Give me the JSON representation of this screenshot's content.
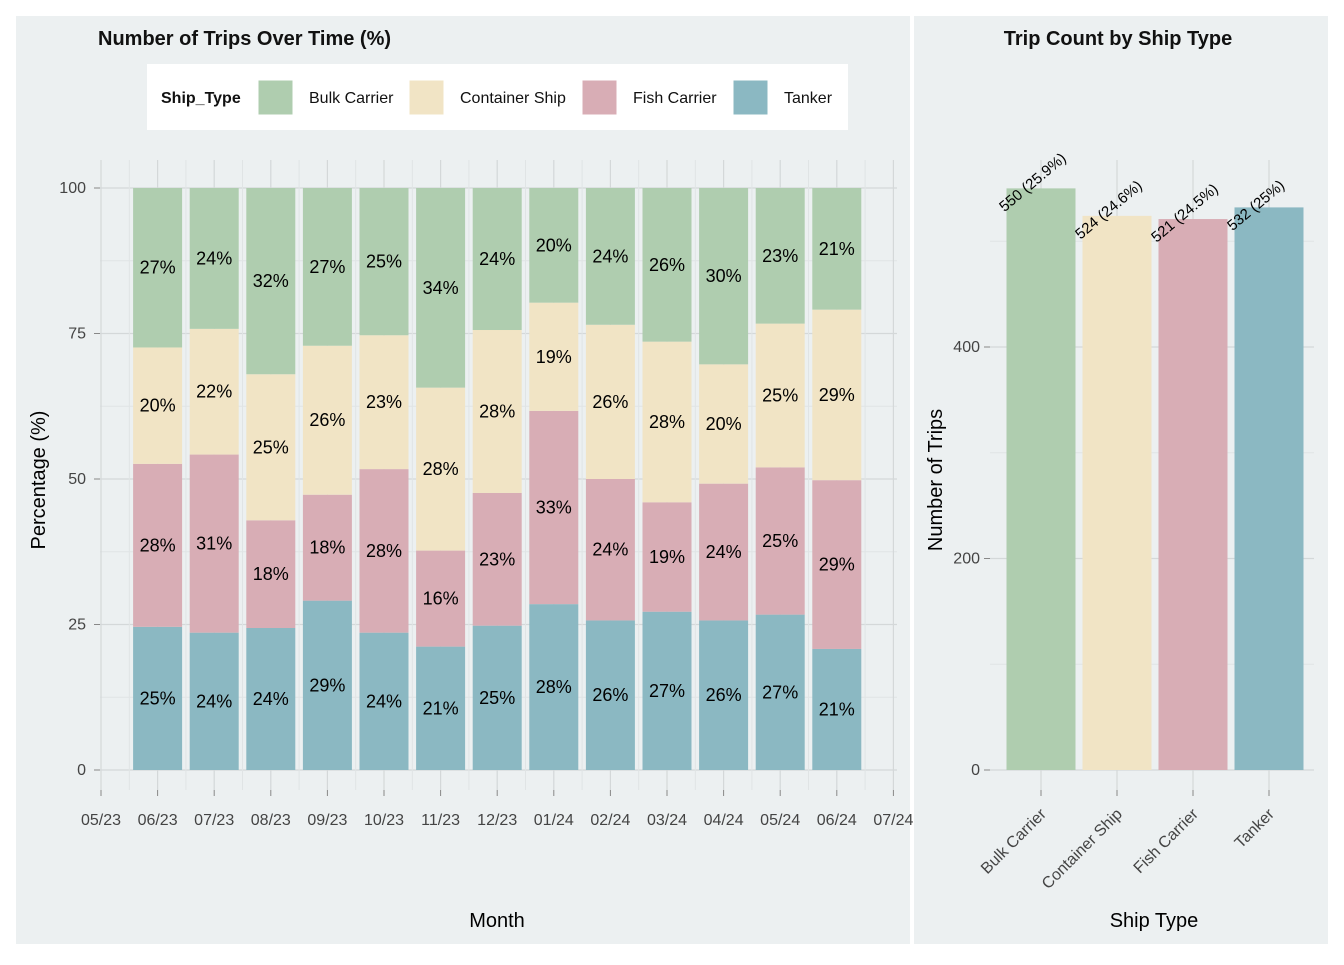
{
  "chart_data": [
    {
      "type": "bar",
      "stacked": true,
      "title": "Number of Trips Over Time (%)",
      "xlabel": "Month",
      "ylabel": "Percentage (%)",
      "ylim": [
        0,
        100
      ],
      "yticks": [
        "0",
        "25",
        "50",
        "75",
        "100"
      ],
      "xticks": [
        "05/23",
        "06/23",
        "07/23",
        "08/23",
        "09/23",
        "10/23",
        "11/23",
        "12/23",
        "01/24",
        "02/24",
        "03/24",
        "04/24",
        "05/24",
        "06/24",
        "07/24"
      ],
      "categories": [
        "06/23",
        "07/23",
        "08/23",
        "09/23",
        "10/23",
        "11/23",
        "12/23",
        "01/24",
        "02/24",
        "03/24",
        "04/24",
        "05/24",
        "06/24"
      ],
      "grid": true,
      "legend": {
        "title": "Ship_Type",
        "placement": "top",
        "entries": [
          "Bulk Carrier",
          "Container Ship",
          "Fish Carrier",
          "Tanker"
        ]
      },
      "series": [
        {
          "name": "Tanker",
          "color": "#8bb8c2",
          "values": [
            24.6,
            23.6,
            24.4,
            29.1,
            23.6,
            21.2,
            24.8,
            28.5,
            25.7,
            27.2,
            25.7,
            26.7,
            20.8
          ],
          "labels": [
            "25%",
            "24%",
            "24%",
            "29%",
            "24%",
            "21%",
            "25%",
            "28%",
            "26%",
            "27%",
            "26%",
            "27%",
            "21%"
          ]
        },
        {
          "name": "Fish Carrier",
          "color": "#d8adb5",
          "values": [
            28.0,
            30.6,
            18.5,
            18.2,
            28.1,
            16.5,
            22.8,
            33.2,
            24.3,
            18.8,
            23.5,
            25.3,
            29.0
          ],
          "labels": [
            "28%",
            "31%",
            "18%",
            "18%",
            "28%",
            "16%",
            "23%",
            "33%",
            "24%",
            "19%",
            "24%",
            "25%",
            "29%"
          ]
        },
        {
          "name": "Container Ship",
          "color": "#f1e4c5",
          "values": [
            20.0,
            21.6,
            25.1,
            25.6,
            23.0,
            28.0,
            28.0,
            18.6,
            26.5,
            27.6,
            20.5,
            24.7,
            29.3
          ],
          "labels": [
            "20%",
            "22%",
            "25%",
            "26%",
            "23%",
            "28%",
            "28%",
            "19%",
            "26%",
            "28%",
            "20%",
            "25%",
            "29%"
          ]
        },
        {
          "name": "Bulk Carrier",
          "color": "#afcdaf",
          "values": [
            27.4,
            24.2,
            32.0,
            27.1,
            25.3,
            34.3,
            24.4,
            19.7,
            23.5,
            26.4,
            30.3,
            23.3,
            20.9
          ],
          "labels": [
            "27%",
            "24%",
            "32%",
            "27%",
            "25%",
            "34%",
            "24%",
            "20%",
            "24%",
            "26%",
            "30%",
            "23%",
            "21%"
          ]
        }
      ]
    },
    {
      "type": "bar",
      "title": "Trip Count by Ship Type",
      "xlabel": "Ship Type",
      "ylabel": "Number of Trips",
      "ylim": [
        0,
        550
      ],
      "yticks": [
        0,
        200,
        400
      ],
      "grid": true,
      "categories": [
        "Bulk Carrier",
        "Container Ship",
        "Fish Carrier",
        "Tanker"
      ],
      "values": [
        550,
        524,
        521,
        532
      ],
      "colors": [
        "#afcdaf",
        "#f1e4c5",
        "#d8adb5",
        "#8bb8c2"
      ],
      "labels": [
        "550 (25.9%)",
        "524 (24.6%)",
        "521 (24.5%)",
        "532 (25%)"
      ]
    }
  ]
}
